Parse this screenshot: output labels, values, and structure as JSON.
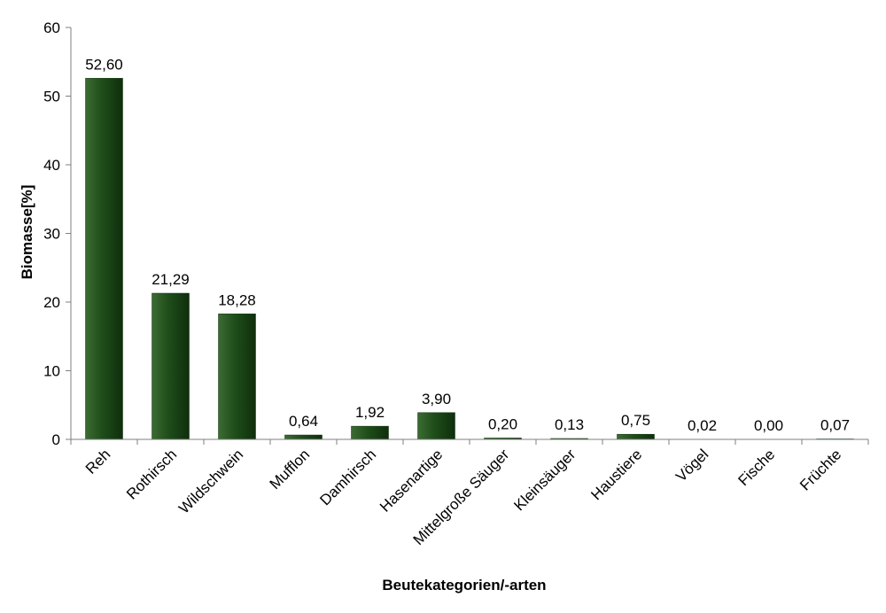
{
  "chart_data": {
    "type": "bar",
    "categories": [
      "Reh",
      "Rothirsch",
      "Wildschwein",
      "Mufflon",
      "Damhirsch",
      "Hasenartige",
      "Mittelgroße Säuger",
      "Kleinsäuger",
      "Haustiere",
      "Vögel",
      "Fische",
      "Früchte"
    ],
    "values": [
      52.6,
      21.29,
      18.28,
      0.64,
      1.92,
      3.9,
      0.2,
      0.13,
      0.75,
      0.02,
      0.0,
      0.07
    ],
    "value_labels": [
      "52,60",
      "21,29",
      "18,28",
      "0,64",
      "1,92",
      "3,90",
      "0,20",
      "0,13",
      "0,75",
      "0,02",
      "0,00",
      "0,07"
    ],
    "xlabel": "Beutekategorien/-arten",
    "ylabel": "Biomasse[%]",
    "ylim": [
      0,
      60
    ],
    "yticks": [
      0,
      10,
      20,
      30,
      40,
      50,
      60
    ],
    "grid": false,
    "legend": "none",
    "bar_color": "#1e4d1a"
  }
}
